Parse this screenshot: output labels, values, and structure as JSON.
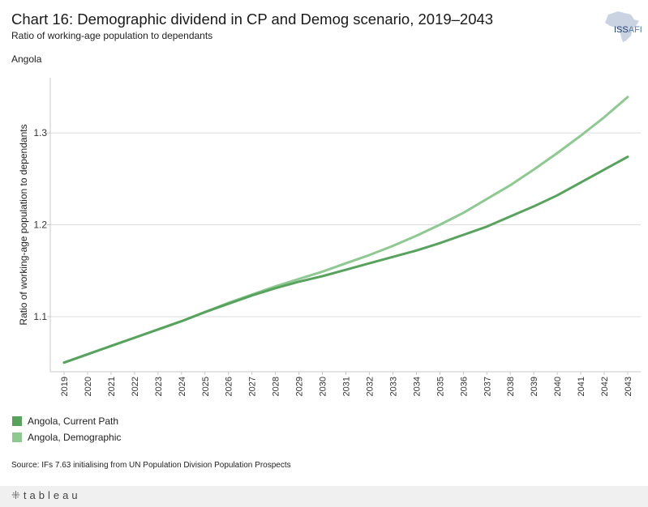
{
  "header": {
    "title": "Chart 16: Demographic dividend in CP and Demog scenario, 2019–2043",
    "subtitle": "Ratio of working-age population to dependants",
    "country": "Angola"
  },
  "logo": {
    "iss": "ISS",
    "afi": "AFI"
  },
  "chart_data": {
    "type": "line",
    "title": "Chart 16: Demographic dividend in CP and Demog scenario, 2019–2043",
    "ylabel": "Ratio of working-age population to dependants",
    "xlabel": "",
    "ylim": [
      1.04,
      1.36
    ],
    "yticks": [
      1.1,
      1.2,
      1.3
    ],
    "ytick_labels": [
      "1.1",
      "1.2",
      "1.3"
    ],
    "x": [
      "2019",
      "2020",
      "2021",
      "2022",
      "2023",
      "2024",
      "2025",
      "2026",
      "2027",
      "2028",
      "2029",
      "2030",
      "2031",
      "2032",
      "2033",
      "2034",
      "2035",
      "2036",
      "2037",
      "2038",
      "2039",
      "2040",
      "2041",
      "2042",
      "2043"
    ],
    "grid": true,
    "legend_position": "bottom-left",
    "series": [
      {
        "name": "Angola,  Current Path",
        "color": "#57a35d",
        "values": [
          1.05,
          1.059,
          1.068,
          1.077,
          1.086,
          1.095,
          1.105,
          1.114,
          1.123,
          1.131,
          1.138,
          1.144,
          1.151,
          1.158,
          1.165,
          1.172,
          1.18,
          1.189,
          1.198,
          1.209,
          1.22,
          1.232,
          1.246,
          1.26,
          1.274
        ]
      },
      {
        "name": "Angola,  Demographic",
        "color": "#8dc990",
        "values": [
          1.05,
          1.059,
          1.068,
          1.077,
          1.086,
          1.095,
          1.105,
          1.115,
          1.124,
          1.133,
          1.141,
          1.149,
          1.158,
          1.167,
          1.177,
          1.188,
          1.2,
          1.213,
          1.228,
          1.243,
          1.26,
          1.278,
          1.297,
          1.317,
          1.339
        ]
      }
    ]
  },
  "legend": {
    "items": [
      {
        "label": "Angola,  Current Path",
        "color": "#57a35d"
      },
      {
        "label": "Angola,  Demographic",
        "color": "#8dc990"
      }
    ]
  },
  "source": "Source: IFs 7.63 initialising from UN Population Division Population Prospects",
  "footer": {
    "brand": "tableau"
  }
}
